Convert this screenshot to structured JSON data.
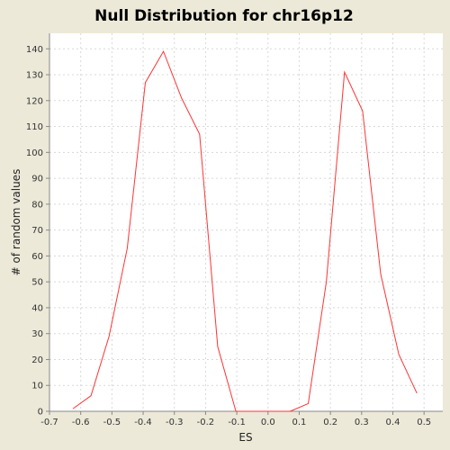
{
  "chart_data": {
    "type": "line",
    "title": "Null Distribution for chr16p12",
    "xlabel": "ES",
    "ylabel": "# of random values",
    "xlim": [
      -0.7,
      0.56
    ],
    "ylim": [
      0,
      146
    ],
    "x_ticks": [
      -0.7,
      -0.6,
      -0.5,
      -0.4,
      -0.3,
      -0.2,
      -0.1,
      0.0,
      0.1,
      0.2,
      0.3,
      0.4,
      0.5
    ],
    "x_tick_labels": [
      "-0.7",
      "-0.6",
      "-0.5",
      "-0.4",
      "-0.3",
      "-0.2",
      "-0.1",
      "0.0",
      "0.1",
      "0.2",
      "0.3",
      "0.4",
      "0.5"
    ],
    "y_ticks": [
      0,
      10,
      20,
      30,
      40,
      50,
      60,
      70,
      80,
      90,
      100,
      110,
      120,
      130,
      140
    ],
    "y_tick_labels": [
      "0",
      "10",
      "20",
      "30",
      "40",
      "50",
      "60",
      "70",
      "80",
      "90",
      "100",
      "110",
      "120",
      "130",
      "140"
    ],
    "grid": true,
    "background": "#ffffff",
    "page_background": "#ece9d8",
    "series": [
      {
        "color": "#ff3333",
        "x": [
          -0.625,
          -0.567,
          -0.509,
          -0.451,
          -0.393,
          -0.335,
          -0.277,
          -0.219,
          -0.161,
          -0.103,
          -0.045,
          0.013,
          0.071,
          0.129,
          0.187,
          0.245,
          0.303,
          0.361,
          0.419,
          0.477
        ],
        "y": [
          1,
          6,
          29,
          63,
          127,
          139,
          121,
          107,
          25,
          0,
          0,
          0,
          0,
          3,
          50,
          131,
          116,
          53,
          22,
          7
        ]
      }
    ]
  }
}
